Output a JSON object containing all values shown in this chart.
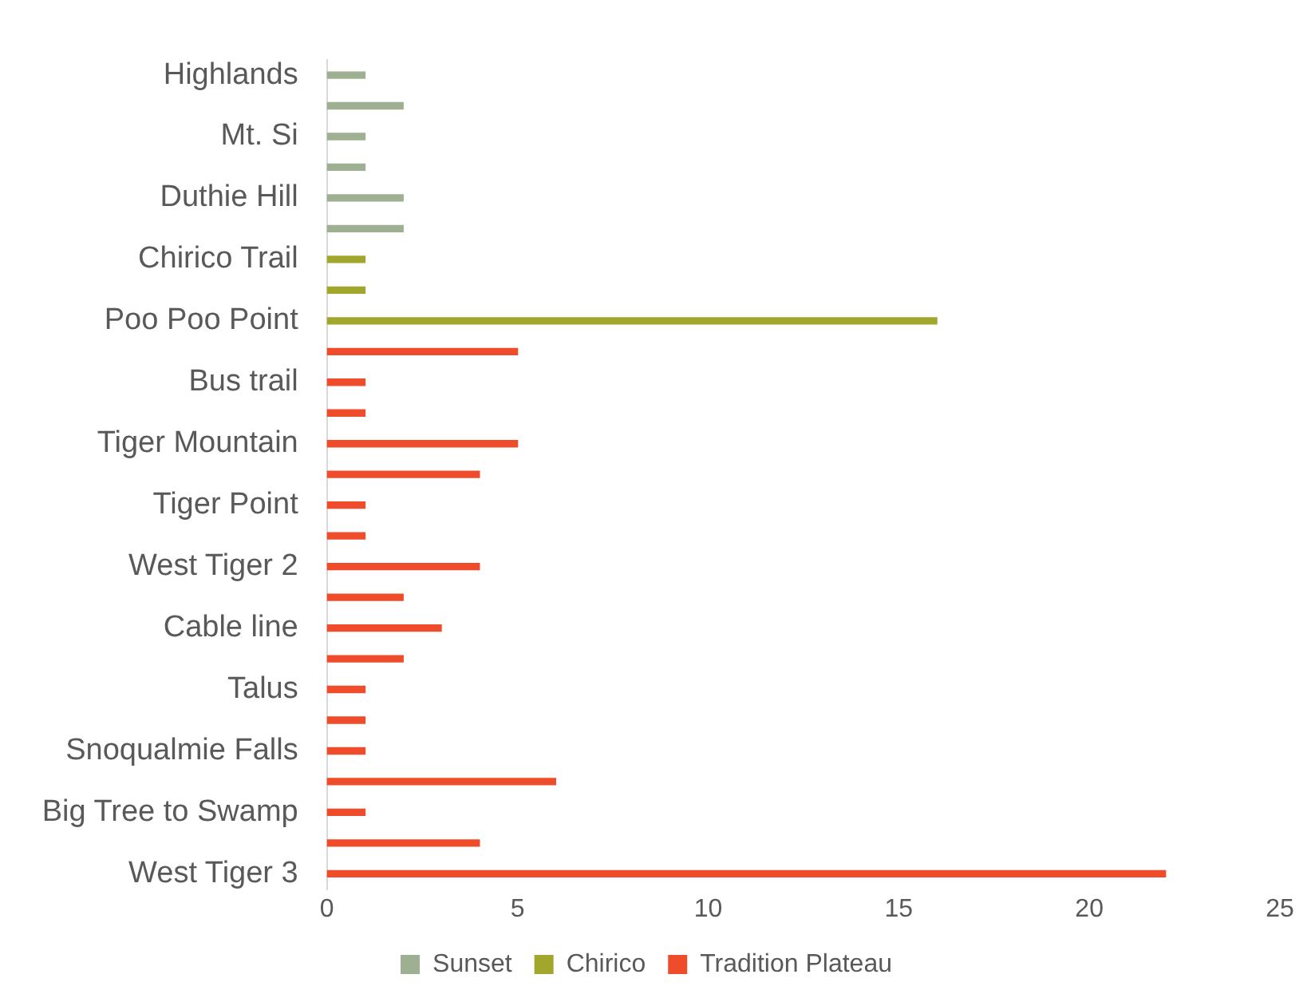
{
  "chart_data": {
    "type": "bar",
    "orientation": "horizontal",
    "stacked": true,
    "categories": [
      "Highlands",
      null,
      "Mt. Si",
      null,
      "Duthie Hill",
      null,
      "Chirico Trail",
      null,
      "Poo Poo Point",
      null,
      "Bus trail",
      null,
      "Tiger Mountain",
      null,
      "Tiger Point",
      null,
      "West Tiger 2",
      null,
      "Cable line",
      null,
      "Talus",
      null,
      "Snoqualmie Falls",
      null,
      "Big Tree to Swamp",
      null,
      "West Tiger 3"
    ],
    "series": [
      {
        "name": "Sunset",
        "color": "#9fb092",
        "values": [
          1,
          2,
          1,
          1,
          2,
          2,
          null,
          null,
          null,
          null,
          null,
          null,
          null,
          null,
          null,
          null,
          null,
          null,
          null,
          null,
          null,
          null,
          null,
          null,
          null,
          null,
          null
        ]
      },
      {
        "name": "Chirico",
        "color": "#a3a62c",
        "values": [
          null,
          null,
          null,
          null,
          null,
          null,
          1,
          1,
          16,
          null,
          null,
          null,
          null,
          null,
          null,
          null,
          null,
          null,
          null,
          null,
          null,
          null,
          null,
          null,
          null,
          null,
          null
        ]
      },
      {
        "name": "Tradition Plateau",
        "color": "#ef4c2c",
        "values": [
          null,
          null,
          null,
          null,
          null,
          null,
          null,
          null,
          null,
          5,
          1,
          1,
          5,
          4,
          1,
          1,
          4,
          2,
          3,
          2,
          1,
          1,
          1,
          6,
          1,
          4,
          22
        ]
      }
    ],
    "xlim": [
      0,
      25
    ],
    "xticks": [
      0,
      5,
      10,
      15,
      20,
      25
    ],
    "grid": false,
    "legend": "bottom"
  }
}
